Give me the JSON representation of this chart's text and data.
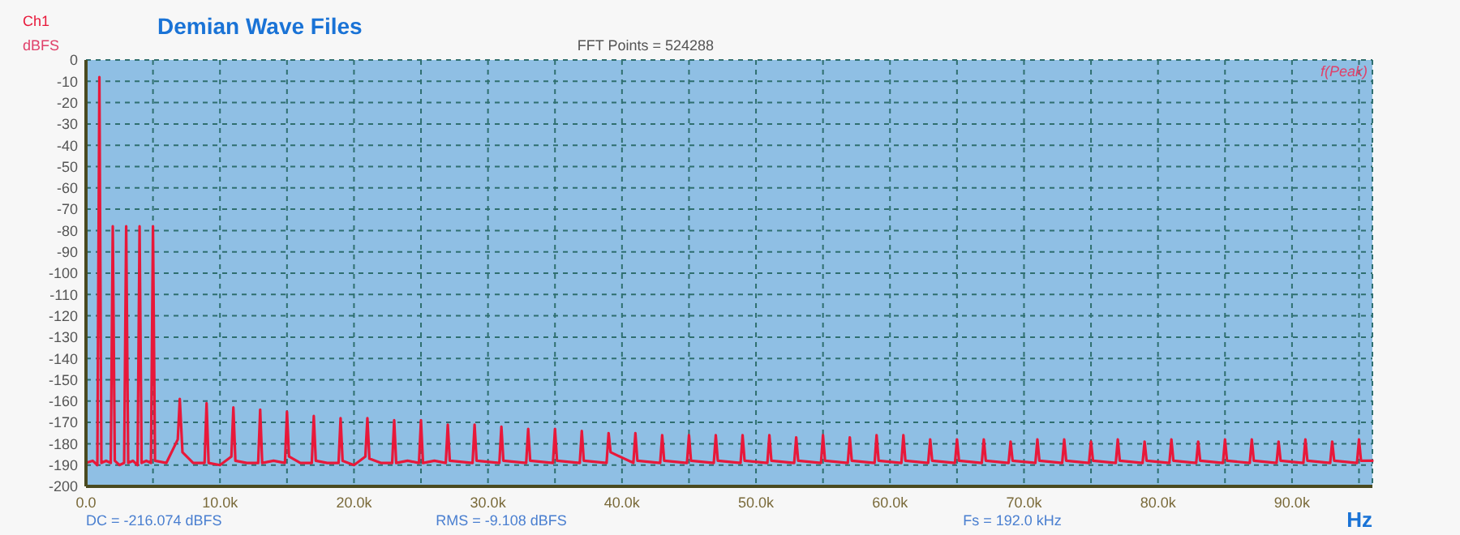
{
  "chart_data": {
    "type": "line",
    "title": "Demian Wave Files",
    "xlabel": "Hz",
    "ylabel": "dBFS",
    "annotations": [
      "FFT Points = 524288",
      "f(Peak)",
      "DC = -216.074 dBFS",
      "RMS = -9.108 dBFS",
      "Fs = 192.0 kHz"
    ],
    "xlim": [
      0,
      96000
    ],
    "ylim": [
      -200,
      0
    ],
    "xticks": [
      {
        "value": 0,
        "label": "0.0"
      },
      {
        "value": 5000,
        "label": null
      },
      {
        "value": 10000,
        "label": "10.0k"
      },
      {
        "value": 15000,
        "label": null
      },
      {
        "value": 20000,
        "label": "20.0k"
      },
      {
        "value": 25000,
        "label": null
      },
      {
        "value": 30000,
        "label": "30.0k"
      },
      {
        "value": 35000,
        "label": null
      },
      {
        "value": 40000,
        "label": "40.0k"
      },
      {
        "value": 45000,
        "label": null
      },
      {
        "value": 50000,
        "label": "50.0k"
      },
      {
        "value": 55000,
        "label": null
      },
      {
        "value": 60000,
        "label": "60.0k"
      },
      {
        "value": 65000,
        "label": null
      },
      {
        "value": 70000,
        "label": "70.0k"
      },
      {
        "value": 75000,
        "label": null
      },
      {
        "value": 80000,
        "label": "80.0k"
      },
      {
        "value": 85000,
        "label": null
      },
      {
        "value": 90000,
        "label": "90.0k"
      },
      {
        "value": 95000,
        "label": null
      }
    ],
    "yticks": [
      0,
      -10,
      -20,
      -30,
      -40,
      -50,
      -60,
      -70,
      -80,
      -90,
      -100,
      -110,
      -120,
      -130,
      -140,
      -150,
      -160,
      -170,
      -180,
      -190,
      -200
    ],
    "grid": true,
    "marker": "none",
    "line_style": "solid",
    "series": [
      {
        "name": "Ch1",
        "color": "#e8183a",
        "x": [
          0,
          500,
          850,
          1000,
          1150,
          1500,
          1850,
          2000,
          2150,
          2500,
          2850,
          3000,
          3150,
          3500,
          3850,
          4000,
          4150,
          4500,
          4850,
          5000,
          5150,
          6000,
          6850,
          7000,
          7200,
          8000,
          8850,
          9000,
          9150,
          10000,
          10850,
          11000,
          11150,
          12000,
          12850,
          13000,
          13150,
          14000,
          14850,
          15000,
          15150,
          16000,
          16850,
          17000,
          17150,
          18000,
          18850,
          19000,
          19150,
          20000,
          20850,
          21000,
          21150,
          22000,
          22850,
          23000,
          23150,
          24000,
          24850,
          25000,
          25150,
          26000,
          26850,
          27000,
          27150,
          28850,
          29000,
          29150,
          30850,
          31000,
          31150,
          32850,
          33000,
          33150,
          34850,
          35000,
          35150,
          36850,
          37000,
          37150,
          38850,
          39000,
          39150,
          40850,
          41000,
          41150,
          42850,
          43000,
          43150,
          44850,
          45000,
          45150,
          46850,
          47000,
          47150,
          48850,
          49000,
          49150,
          50850,
          51000,
          51150,
          52850,
          53000,
          53150,
          54850,
          55000,
          55150,
          56850,
          57000,
          57150,
          58850,
          59000,
          59150,
          60850,
          61000,
          61150,
          62850,
          63000,
          63150,
          64850,
          65000,
          65150,
          66850,
          67000,
          67150,
          68850,
          69000,
          69150,
          70850,
          71000,
          71150,
          72850,
          73000,
          73150,
          74850,
          75000,
          75150,
          76850,
          77000,
          77150,
          78850,
          79000,
          79150,
          80850,
          81000,
          81150,
          82850,
          83000,
          83150,
          84850,
          85000,
          85150,
          86850,
          87000,
          87150,
          88850,
          89000,
          89150,
          90850,
          91000,
          91150,
          92850,
          93000,
          93150,
          94850,
          95000,
          95150,
          96000
        ],
        "values": [
          -189,
          -188,
          -190,
          -8,
          -189,
          -188,
          -189,
          -78,
          -188,
          -190,
          -189,
          -78,
          -189,
          -188,
          -190,
          -78,
          -189,
          -188,
          -189,
          -78,
          -188,
          -189,
          -178,
          -159,
          -184,
          -189,
          -189,
          -161,
          -189,
          -190,
          -186,
          -163,
          -188,
          -189,
          -189,
          -164,
          -189,
          -188,
          -189,
          -165,
          -186,
          -189,
          -189,
          -167,
          -188,
          -189,
          -189,
          -168,
          -188,
          -190,
          -186,
          -168,
          -187,
          -189,
          -189,
          -169,
          -189,
          -188,
          -189,
          -169,
          -189,
          -188,
          -189,
          -171,
          -188,
          -189,
          -171,
          -188,
          -189,
          -172,
          -188,
          -189,
          -173,
          -188,
          -189,
          -173,
          -188,
          -189,
          -174,
          -188,
          -189,
          -175,
          -184,
          -189,
          -175,
          -188,
          -189,
          -176,
          -188,
          -189,
          -176,
          -188,
          -189,
          -176,
          -188,
          -189,
          -176,
          -188,
          -189,
          -176,
          -188,
          -189,
          -177,
          -188,
          -189,
          -176,
          -188,
          -189,
          -177,
          -188,
          -189,
          -176,
          -188,
          -189,
          -176,
          -188,
          -189,
          -178,
          -188,
          -189,
          -178,
          -188,
          -189,
          -178,
          -188,
          -189,
          -179,
          -188,
          -189,
          -178,
          -188,
          -189,
          -178,
          -188,
          -189,
          -179,
          -188,
          -189,
          -178,
          -188,
          -189,
          -179,
          -188,
          -189,
          -178,
          -188,
          -189,
          -179,
          -188,
          -189,
          -178,
          -188,
          -189,
          -178,
          -188,
          -189,
          -179,
          -188,
          -189,
          -178,
          -188,
          -189,
          -179,
          -188,
          -189,
          -178,
          -188,
          -188
        ]
      }
    ]
  }
}
